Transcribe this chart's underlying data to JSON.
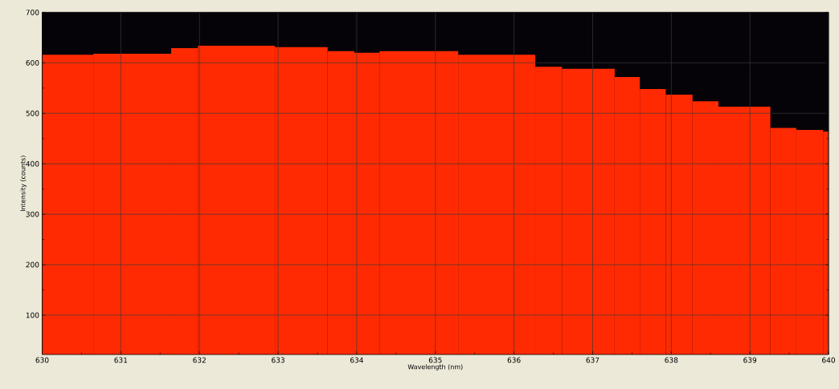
{
  "chart_data": {
    "type": "histogram",
    "xlabel": "Wavelength (nm)",
    "ylabel": "Intensity (counts)",
    "bins": [
      630,
      630.65,
      631.64,
      631.98,
      632.96,
      633.63,
      633.97,
      634.29,
      635.29,
      636.27,
      636.61,
      637.28,
      637.6,
      637.93,
      638.27,
      638.6,
      639.26,
      639.59,
      639.93,
      640
    ],
    "values": [
      616,
      618,
      629,
      634,
      631,
      623,
      620,
      623,
      616,
      592,
      588,
      572,
      548,
      537,
      524,
      513,
      471,
      467,
      464
    ],
    "color": "#ff2a02",
    "xlim": [
      630,
      640
    ],
    "ylim": [
      22,
      700
    ],
    "xticks": [
      630,
      631,
      632,
      633,
      634,
      635,
      636,
      637,
      638,
      639,
      640
    ],
    "yticks": [
      100,
      200,
      300,
      400,
      500,
      600,
      700
    ],
    "grid": true
  }
}
